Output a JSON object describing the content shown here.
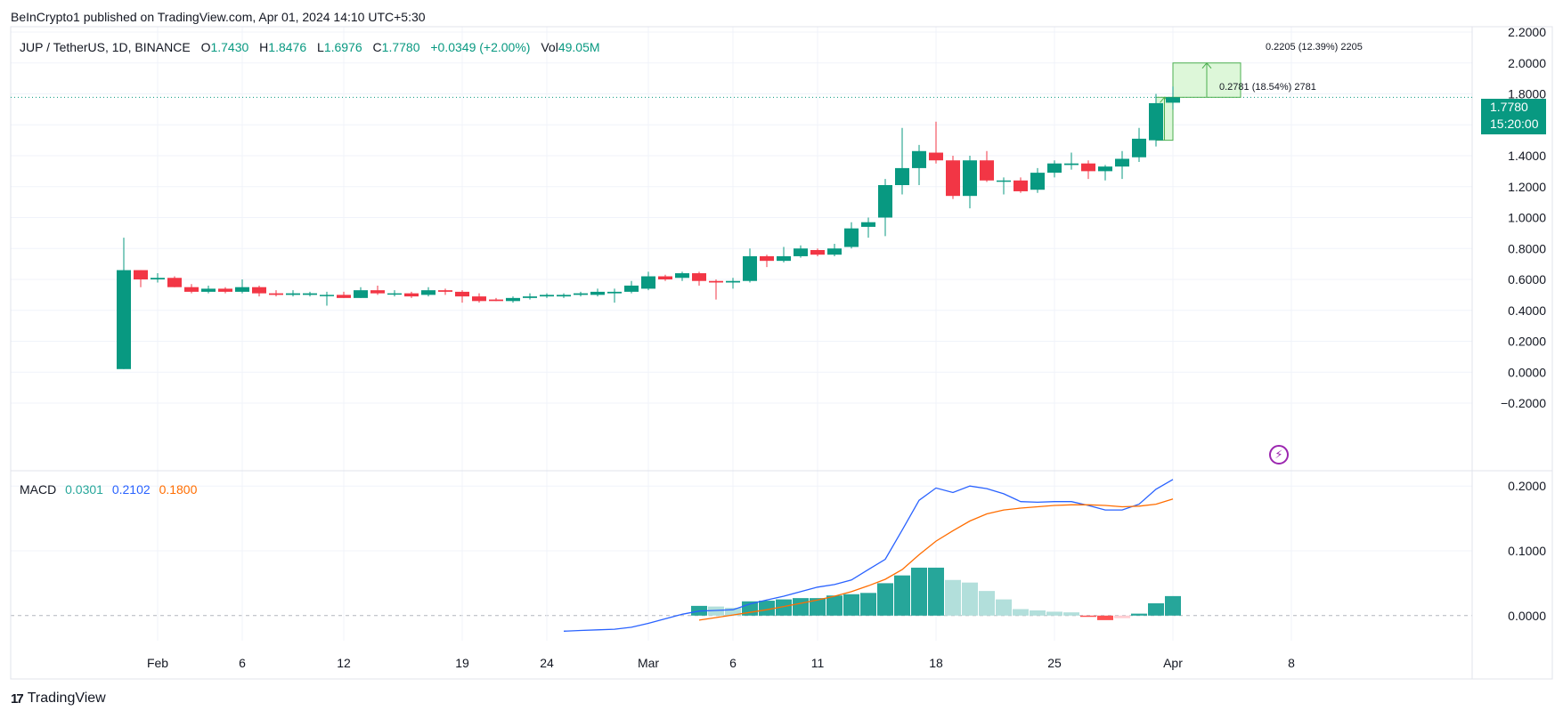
{
  "publisher": "BeInCrypto1 published on TradingView.com, Apr 01, 2024 14:10 UTC+5:30",
  "legend": {
    "symbol": "JUP / TetherUS, 1D, BINANCE",
    "open_label": "O",
    "open": "1.7430",
    "high_label": "H",
    "high": "1.8476",
    "low_label": "L",
    "low": "1.6976",
    "close_label": "C",
    "close": "1.7780",
    "change": "+0.0349 (+2.00%)",
    "vol_label": "Vol",
    "vol": "49.05M"
  },
  "macd_legend": {
    "label": "MACD",
    "histogram": "0.0301",
    "macd": "0.2102",
    "signal": "0.1800"
  },
  "price_tag": {
    "price": "1.7780",
    "countdown": "15:20:00"
  },
  "measurements": [
    {
      "text": "0.2205 (12.39%) 2205"
    },
    {
      "text": "0.2781 (18.54%) 2781"
    }
  ],
  "brand": "TradingView",
  "colors": {
    "up": "#089981",
    "down": "#f23645",
    "macd_line": "#2962ff",
    "signal_line": "#ff6d00",
    "hist_up_strong": "#26a69a",
    "hist_up_weak": "#b2dfdb",
    "hist_down_strong": "#ff5252",
    "hist_down_weak": "#ffcdd2",
    "measure_fill": "#d4f5d0",
    "measure_stroke": "#4caf50"
  },
  "chart_data": [
    {
      "type": "candlestick",
      "title": "JUP / TetherUS, 1D, BINANCE",
      "y_axis_ticks": [
        "2.2000",
        "2.0000",
        "1.8000",
        "1.6000",
        "1.4000",
        "1.2000",
        "1.0000",
        "0.8000",
        "0.6000",
        "0.4000",
        "0.2000",
        "0.0000",
        "−0.2000"
      ],
      "ylim": [
        -0.2,
        2.2
      ],
      "x_axis_ticks": [
        "Feb",
        "6",
        "12",
        "19",
        "24",
        "Mar",
        "6",
        "11",
        "18",
        "25",
        "Apr",
        "8"
      ],
      "x_tick_days": [
        1,
        6,
        12,
        19,
        24,
        30,
        35,
        40,
        47,
        54,
        61,
        68
      ],
      "grid": true,
      "last_price": 1.778,
      "candles": [
        {
          "d": -1,
          "o": 0.02,
          "h": 0.87,
          "l": 0.02,
          "c": 0.66
        },
        {
          "d": 0,
          "o": 0.66,
          "h": 0.66,
          "l": 0.55,
          "c": 0.6
        },
        {
          "d": 1,
          "o": 0.6,
          "h": 0.64,
          "l": 0.58,
          "c": 0.61
        },
        {
          "d": 2,
          "o": 0.61,
          "h": 0.62,
          "l": 0.55,
          "c": 0.55
        },
        {
          "d": 3,
          "o": 0.55,
          "h": 0.57,
          "l": 0.51,
          "c": 0.52
        },
        {
          "d": 4,
          "o": 0.52,
          "h": 0.56,
          "l": 0.51,
          "c": 0.54
        },
        {
          "d": 5,
          "o": 0.54,
          "h": 0.55,
          "l": 0.51,
          "c": 0.52
        },
        {
          "d": 6,
          "o": 0.52,
          "h": 0.6,
          "l": 0.51,
          "c": 0.55
        },
        {
          "d": 7,
          "o": 0.55,
          "h": 0.56,
          "l": 0.49,
          "c": 0.51
        },
        {
          "d": 8,
          "o": 0.51,
          "h": 0.53,
          "l": 0.49,
          "c": 0.5
        },
        {
          "d": 9,
          "o": 0.5,
          "h": 0.53,
          "l": 0.49,
          "c": 0.51
        },
        {
          "d": 10,
          "o": 0.5,
          "h": 0.52,
          "l": 0.49,
          "c": 0.51
        },
        {
          "d": 11,
          "o": 0.5,
          "h": 0.52,
          "l": 0.43,
          "c": 0.5
        },
        {
          "d": 12,
          "o": 0.5,
          "h": 0.52,
          "l": 0.48,
          "c": 0.48
        },
        {
          "d": 13,
          "o": 0.48,
          "h": 0.55,
          "l": 0.48,
          "c": 0.53
        },
        {
          "d": 14,
          "o": 0.53,
          "h": 0.56,
          "l": 0.5,
          "c": 0.51
        },
        {
          "d": 15,
          "o": 0.51,
          "h": 0.53,
          "l": 0.49,
          "c": 0.51
        },
        {
          "d": 16,
          "o": 0.51,
          "h": 0.52,
          "l": 0.48,
          "c": 0.49
        },
        {
          "d": 17,
          "o": 0.5,
          "h": 0.55,
          "l": 0.49,
          "c": 0.53
        },
        {
          "d": 18,
          "o": 0.53,
          "h": 0.54,
          "l": 0.5,
          "c": 0.52
        },
        {
          "d": 19,
          "o": 0.52,
          "h": 0.53,
          "l": 0.45,
          "c": 0.49
        },
        {
          "d": 20,
          "o": 0.49,
          "h": 0.51,
          "l": 0.45,
          "c": 0.46
        },
        {
          "d": 21,
          "o": 0.47,
          "h": 0.48,
          "l": 0.46,
          "c": 0.46
        },
        {
          "d": 22,
          "o": 0.46,
          "h": 0.49,
          "l": 0.45,
          "c": 0.48
        },
        {
          "d": 23,
          "o": 0.48,
          "h": 0.51,
          "l": 0.47,
          "c": 0.49
        },
        {
          "d": 24,
          "o": 0.49,
          "h": 0.51,
          "l": 0.48,
          "c": 0.5
        },
        {
          "d": 25,
          "o": 0.49,
          "h": 0.51,
          "l": 0.48,
          "c": 0.5
        },
        {
          "d": 26,
          "o": 0.5,
          "h": 0.52,
          "l": 0.49,
          "c": 0.51
        },
        {
          "d": 27,
          "o": 0.5,
          "h": 0.54,
          "l": 0.49,
          "c": 0.52
        },
        {
          "d": 28,
          "o": 0.51,
          "h": 0.54,
          "l": 0.45,
          "c": 0.52
        },
        {
          "d": 29,
          "o": 0.52,
          "h": 0.59,
          "l": 0.51,
          "c": 0.56
        },
        {
          "d": 30,
          "o": 0.54,
          "h": 0.65,
          "l": 0.53,
          "c": 0.62
        },
        {
          "d": 31,
          "o": 0.62,
          "h": 0.63,
          "l": 0.59,
          "c": 0.6
        },
        {
          "d": 32,
          "o": 0.61,
          "h": 0.65,
          "l": 0.59,
          "c": 0.64
        },
        {
          "d": 33,
          "o": 0.64,
          "h": 0.65,
          "l": 0.56,
          "c": 0.59
        },
        {
          "d": 34,
          "o": 0.59,
          "h": 0.6,
          "l": 0.47,
          "c": 0.58
        },
        {
          "d": 35,
          "o": 0.58,
          "h": 0.61,
          "l": 0.54,
          "c": 0.59
        },
        {
          "d": 36,
          "o": 0.59,
          "h": 0.8,
          "l": 0.58,
          "c": 0.75
        },
        {
          "d": 37,
          "o": 0.75,
          "h": 0.76,
          "l": 0.68,
          "c": 0.72
        },
        {
          "d": 38,
          "o": 0.72,
          "h": 0.81,
          "l": 0.71,
          "c": 0.75
        },
        {
          "d": 39,
          "o": 0.75,
          "h": 0.82,
          "l": 0.74,
          "c": 0.8
        },
        {
          "d": 40,
          "o": 0.79,
          "h": 0.8,
          "l": 0.75,
          "c": 0.76
        },
        {
          "d": 41,
          "o": 0.76,
          "h": 0.83,
          "l": 0.75,
          "c": 0.8
        },
        {
          "d": 42,
          "o": 0.81,
          "h": 0.97,
          "l": 0.8,
          "c": 0.93
        },
        {
          "d": 43,
          "o": 0.94,
          "h": 1.0,
          "l": 0.87,
          "c": 0.97
        },
        {
          "d": 44,
          "o": 1.0,
          "h": 1.25,
          "l": 0.88,
          "c": 1.21
        },
        {
          "d": 45,
          "o": 1.21,
          "h": 1.58,
          "l": 1.15,
          "c": 1.32
        },
        {
          "d": 46,
          "o": 1.32,
          "h": 1.47,
          "l": 1.21,
          "c": 1.43
        },
        {
          "d": 47,
          "o": 1.42,
          "h": 1.62,
          "l": 1.35,
          "c": 1.37
        },
        {
          "d": 48,
          "o": 1.37,
          "h": 1.4,
          "l": 1.12,
          "c": 1.14
        },
        {
          "d": 49,
          "o": 1.14,
          "h": 1.4,
          "l": 1.06,
          "c": 1.37
        },
        {
          "d": 50,
          "o": 1.37,
          "h": 1.43,
          "l": 1.23,
          "c": 1.24
        },
        {
          "d": 51,
          "o": 1.24,
          "h": 1.26,
          "l": 1.15,
          "c": 1.24
        },
        {
          "d": 52,
          "o": 1.24,
          "h": 1.26,
          "l": 1.16,
          "c": 1.17
        },
        {
          "d": 53,
          "o": 1.18,
          "h": 1.32,
          "l": 1.16,
          "c": 1.29
        },
        {
          "d": 54,
          "o": 1.29,
          "h": 1.37,
          "l": 1.26,
          "c": 1.35
        },
        {
          "d": 55,
          "o": 1.34,
          "h": 1.42,
          "l": 1.31,
          "c": 1.35
        },
        {
          "d": 56,
          "o": 1.35,
          "h": 1.37,
          "l": 1.25,
          "c": 1.3
        },
        {
          "d": 57,
          "o": 1.3,
          "h": 1.34,
          "l": 1.24,
          "c": 1.33
        },
        {
          "d": 58,
          "o": 1.33,
          "h": 1.43,
          "l": 1.25,
          "c": 1.38
        },
        {
          "d": 59,
          "o": 1.39,
          "h": 1.58,
          "l": 1.36,
          "c": 1.51
        },
        {
          "d": 60,
          "o": 1.5,
          "h": 1.8,
          "l": 1.46,
          "c": 1.74
        },
        {
          "d": 61,
          "o": 1.743,
          "h": 1.8476,
          "l": 1.6976,
          "c": 1.778
        }
      ],
      "measure_boxes": [
        {
          "x_from": 60,
          "x_to": 61,
          "y_from": 1.5,
          "y_to": 1.778,
          "label_index": 1
        },
        {
          "x_from": 61,
          "x_to": 65,
          "y_from": 1.778,
          "y_to": 2.0,
          "label_index": 0
        }
      ]
    },
    {
      "type": "bar",
      "title": "MACD",
      "y_axis_ticks": [
        "0.2000",
        "0.1000",
        "0.0000"
      ],
      "ylim": [
        -0.036,
        0.225
      ],
      "series": [
        {
          "name": "MACD",
          "kind": "line",
          "points": [
            [
              25,
              -0.024
            ],
            [
              26,
              -0.023
            ],
            [
              27,
              -0.022
            ],
            [
              28,
              -0.021
            ],
            [
              29,
              -0.018
            ],
            [
              30,
              -0.012
            ],
            [
              31,
              -0.005
            ],
            [
              32,
              0.002
            ],
            [
              33,
              0.007
            ],
            [
              34,
              0.008
            ],
            [
              35,
              0.009
            ],
            [
              36,
              0.018
            ],
            [
              37,
              0.024
            ],
            [
              38,
              0.03
            ],
            [
              39,
              0.037
            ],
            [
              40,
              0.044
            ],
            [
              41,
              0.048
            ],
            [
              42,
              0.055
            ],
            [
              43,
              0.071
            ],
            [
              44,
              0.087
            ],
            [
              45,
              0.132
            ],
            [
              46,
              0.178
            ],
            [
              47,
              0.197
            ],
            [
              48,
              0.19
            ],
            [
              49,
              0.2
            ],
            [
              50,
              0.196
            ],
            [
              51,
              0.188
            ],
            [
              52,
              0.176
            ],
            [
              53,
              0.175
            ],
            [
              54,
              0.176
            ],
            [
              55,
              0.176
            ],
            [
              56,
              0.17
            ],
            [
              57,
              0.163
            ],
            [
              58,
              0.163
            ],
            [
              59,
              0.172
            ],
            [
              60,
              0.195
            ],
            [
              61,
              0.2102
            ]
          ]
        },
        {
          "name": "Signal",
          "kind": "line",
          "points": [
            [
              33,
              -0.007
            ],
            [
              34,
              -0.003
            ],
            [
              35,
              0.001
            ],
            [
              36,
              0.005
            ],
            [
              37,
              0.009
            ],
            [
              38,
              0.014
            ],
            [
              39,
              0.019
            ],
            [
              40,
              0.024
            ],
            [
              41,
              0.03
            ],
            [
              42,
              0.037
            ],
            [
              43,
              0.046
            ],
            [
              44,
              0.056
            ],
            [
              45,
              0.071
            ],
            [
              46,
              0.094
            ],
            [
              47,
              0.115
            ],
            [
              48,
              0.131
            ],
            [
              49,
              0.146
            ],
            [
              50,
              0.157
            ],
            [
              51,
              0.163
            ],
            [
              52,
              0.166
            ],
            [
              53,
              0.168
            ],
            [
              54,
              0.17
            ],
            [
              55,
              0.171
            ],
            [
              56,
              0.171
            ],
            [
              57,
              0.17
            ],
            [
              58,
              0.168
            ],
            [
              59,
              0.169
            ],
            [
              60,
              0.172
            ],
            [
              61,
              0.18
            ]
          ]
        },
        {
          "name": "Histogram",
          "kind": "bar",
          "points": [
            [
              33,
              0.015
            ],
            [
              34,
              0.014
            ],
            [
              35,
              0.012
            ],
            [
              36,
              0.022
            ],
            [
              37,
              0.023
            ],
            [
              38,
              0.025
            ],
            [
              39,
              0.027
            ],
            [
              40,
              0.027
            ],
            [
              41,
              0.031
            ],
            [
              42,
              0.033
            ],
            [
              43,
              0.035
            ],
            [
              44,
              0.05
            ],
            [
              45,
              0.062
            ],
            [
              46,
              0.074
            ],
            [
              47,
              0.074
            ],
            [
              48,
              0.055
            ],
            [
              49,
              0.051
            ],
            [
              50,
              0.038
            ],
            [
              51,
              0.025
            ],
            [
              52,
              0.01
            ],
            [
              53,
              0.008
            ],
            [
              54,
              0.006
            ],
            [
              55,
              0.005
            ],
            [
              56,
              -0.002
            ],
            [
              57,
              -0.007
            ],
            [
              58,
              -0.004
            ],
            [
              59,
              0.003
            ],
            [
              60,
              0.019
            ],
            [
              61,
              0.0301
            ]
          ]
        }
      ]
    }
  ]
}
